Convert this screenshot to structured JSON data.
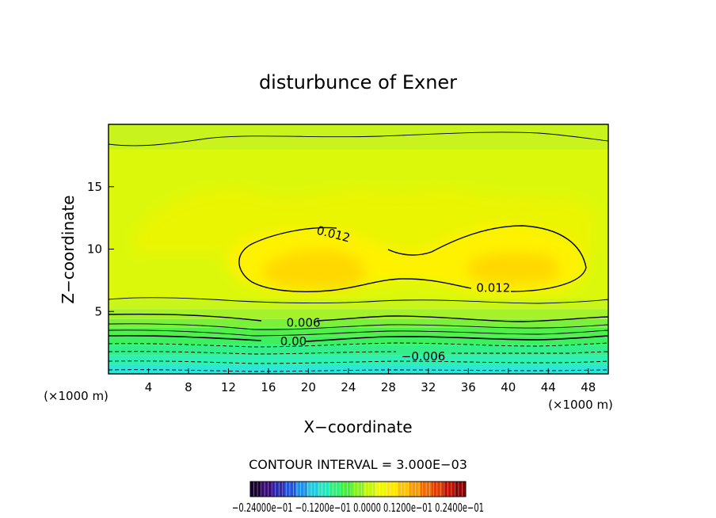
{
  "chart_data": {
    "type": "contour",
    "title": "disturbunce of Exner",
    "xlabel": "X−coordinate",
    "ylabel": "Z−coordinate",
    "x_unit_label": "(×1000 m)",
    "z_unit_label": "(×1000 m)",
    "xlim": [
      0,
      50
    ],
    "ylim": [
      0,
      20
    ],
    "x_ticks": [
      4,
      8,
      12,
      16,
      20,
      24,
      28,
      32,
      36,
      40,
      44,
      48
    ],
    "y_ticks": [
      5,
      10,
      15
    ],
    "contour_interval_text": "CONTOUR INTERVAL = 3.000E−03",
    "contour_labels": [
      {
        "text": "0.012",
        "x": 22.5,
        "z": 11.2
      },
      {
        "text": "0.012",
        "x": 38.5,
        "z": 6.9
      },
      {
        "text": "0.006",
        "x": 19.5,
        "z": 4.1
      },
      {
        "text": "0.00",
        "x": 18.5,
        "z": 2.6
      },
      {
        "text": "−0.006",
        "x": 31.5,
        "z": 1.4
      }
    ],
    "colorbar": {
      "min_label": "−0.2400e−01",
      "labels_text": "−0.24000e−01 −0.1200e−01 0.0000 0.1200e−01 0.2400e−01",
      "colors": [
        "#1a0033",
        "#3a0a7a",
        "#2a2ab0",
        "#1f55d8",
        "#1e90e6",
        "#22c8e0",
        "#22e6bf",
        "#2ef07a",
        "#46ee3a",
        "#86f21e",
        "#c4f50a",
        "#eef800",
        "#fde800",
        "#fcc400",
        "#f89a00",
        "#f06a00",
        "#e23c00",
        "#c01200",
        "#8a0000"
      ]
    },
    "fill_levels": [
      {
        "bottom_z": 0.0,
        "color": "#2de6d9"
      },
      {
        "bottom_z": 0.7,
        "color": "#2ef0b0"
      },
      {
        "bottom_z": 1.5,
        "color": "#33ef8a"
      },
      {
        "bottom_z": 2.3,
        "color": "#3cf060"
      },
      {
        "bottom_z": 3.0,
        "color": "#50f04a"
      },
      {
        "bottom_z": 3.7,
        "color": "#7af03a"
      },
      {
        "bottom_z": 4.4,
        "color": "#a6f22a"
      },
      {
        "bottom_z": 5.2,
        "color": "#c8f51a"
      },
      {
        "bottom_z": 6.0,
        "color": "#dcf80a"
      },
      {
        "bottom_z": 18.0,
        "color": "#c8f31c"
      }
    ]
  }
}
